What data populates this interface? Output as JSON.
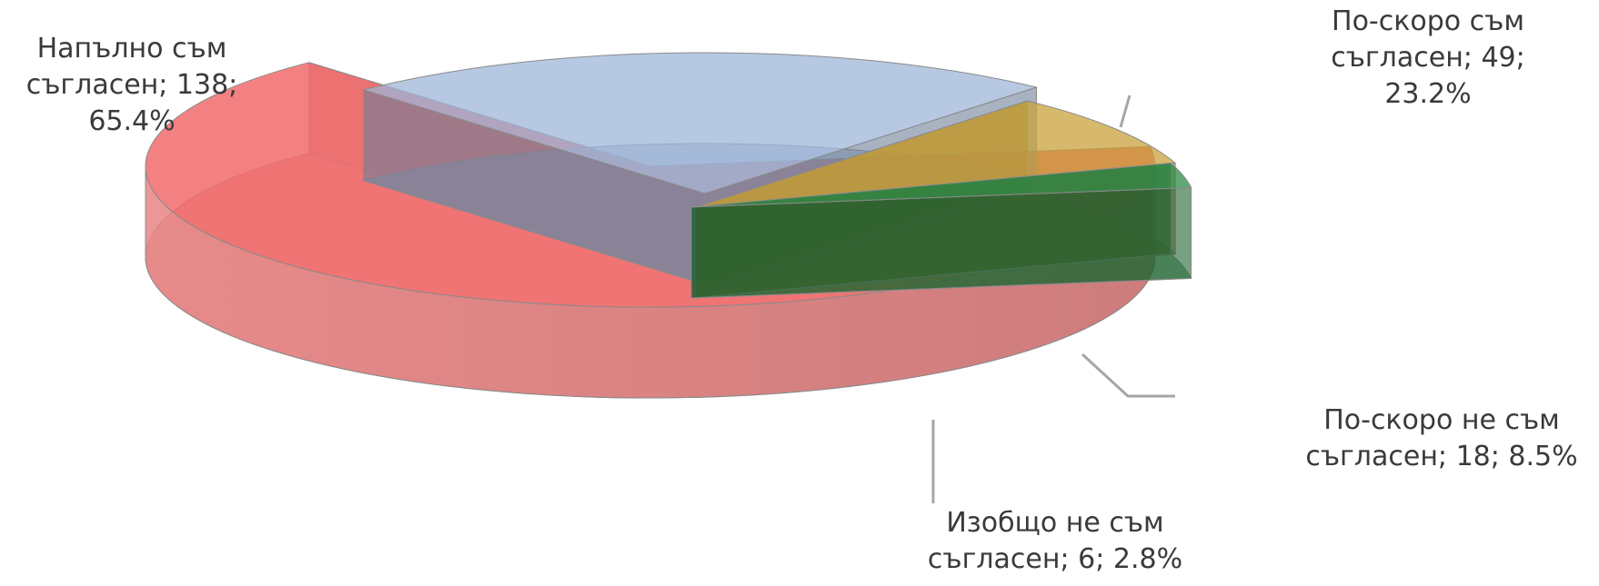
{
  "chart_data": {
    "type": "pie",
    "style": "3d-exploded",
    "legend": "none",
    "slices": [
      {
        "name": "Напълно съм съгласен",
        "value": 138,
        "percent": "65.4%",
        "color": "#f26b6b",
        "label_lines": [
          "Напълно съм",
          "съгласен; 138;",
          "65.4%"
        ]
      },
      {
        "name": "По-скоро съм съгласен",
        "value": 49,
        "percent": "23.2%",
        "color": "#9db5d8",
        "label_lines": [
          "По-скоро съм",
          "съгласен; 49;",
          "23.2%"
        ]
      },
      {
        "name": "По-скоро не съм съгласен",
        "value": 18,
        "percent": "8.5%",
        "color": "#c9a23c",
        "label_lines": [
          "По-скоро не съм",
          "съгласен; 18; 8.5%"
        ]
      },
      {
        "name": "Изобщо не съм съгласен",
        "value": 6,
        "percent": "2.8%",
        "color": "#2e8b45",
        "label_lines": [
          "Изобщо не съм",
          "съгласен; 6; 2.8%"
        ]
      }
    ]
  }
}
